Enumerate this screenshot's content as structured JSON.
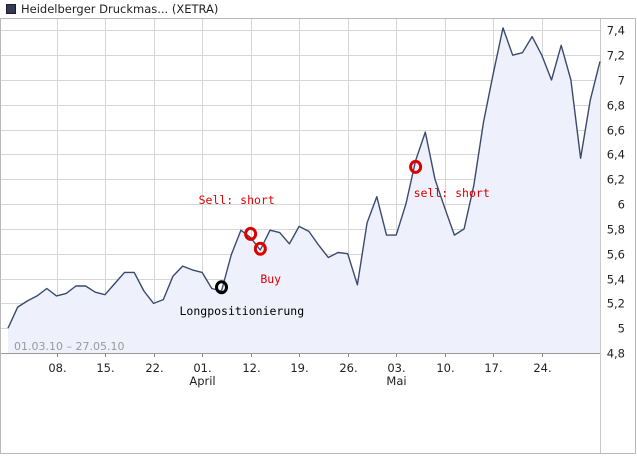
{
  "chart_data": {
    "type": "area",
    "title": "Heidelberger Druckmas... (XETRA)",
    "date_range": "01.03.10 – 27.05.10",
    "ylim": [
      4.8,
      7.5
    ],
    "y_ticks": [
      "4,8",
      "5",
      "5,2",
      "5,4",
      "5,6",
      "5,8",
      "6",
      "6,2",
      "6,4",
      "6,6",
      "6,8",
      "7",
      "7,2",
      "7,4"
    ],
    "x_ticks": [
      {
        "label": "08.",
        "month": ""
      },
      {
        "label": "15.",
        "month": ""
      },
      {
        "label": "22.",
        "month": ""
      },
      {
        "label": "01.",
        "month": "April"
      },
      {
        "label": "12.",
        "month": ""
      },
      {
        "label": "19.",
        "month": ""
      },
      {
        "label": "26.",
        "month": ""
      },
      {
        "label": "03.",
        "month": "Mai"
      },
      {
        "label": "10.",
        "month": ""
      },
      {
        "label": "17.",
        "month": ""
      },
      {
        "label": "24.",
        "month": ""
      }
    ],
    "grid": true,
    "series": [
      {
        "values": [
          5.0,
          5.17,
          5.22,
          5.26,
          5.32,
          5.26,
          5.28,
          5.34,
          5.34,
          5.29,
          5.27,
          5.36,
          5.45,
          5.45,
          5.3,
          5.2,
          5.23,
          5.42,
          5.5,
          5.47,
          5.45,
          5.32,
          5.3,
          5.59,
          5.79,
          5.73,
          5.63,
          5.79,
          5.77,
          5.68,
          5.82,
          5.78,
          5.67,
          5.57,
          5.61,
          5.6,
          5.35,
          5.85,
          6.06,
          5.75,
          5.75,
          6.0,
          6.35,
          6.58,
          6.2,
          5.97,
          5.75,
          5.8,
          6.15,
          6.66,
          7.05,
          7.42,
          7.2,
          7.22,
          7.35,
          7.2,
          7.0,
          7.28,
          7.0,
          6.37,
          6.84,
          7.15
        ]
      }
    ],
    "annotations": [
      {
        "text": "Longpositionierung",
        "color": "#000000",
        "index": 22,
        "value": 5.33
      },
      {
        "text": "Sell: short",
        "color": "#dd0000",
        "index": 25,
        "value": 5.76
      },
      {
        "text": "Buy",
        "color": "#dd0000",
        "index": 26,
        "value": 5.64
      },
      {
        "text": "sell: short",
        "color": "#dd0000",
        "index": 42,
        "value": 6.3
      }
    ],
    "colors": {
      "line": "#3a4a6e",
      "fill": "#eef0fb",
      "grid": "#d6d6d6",
      "marker_red": "#e8141a",
      "marker_black": "#000000"
    }
  }
}
